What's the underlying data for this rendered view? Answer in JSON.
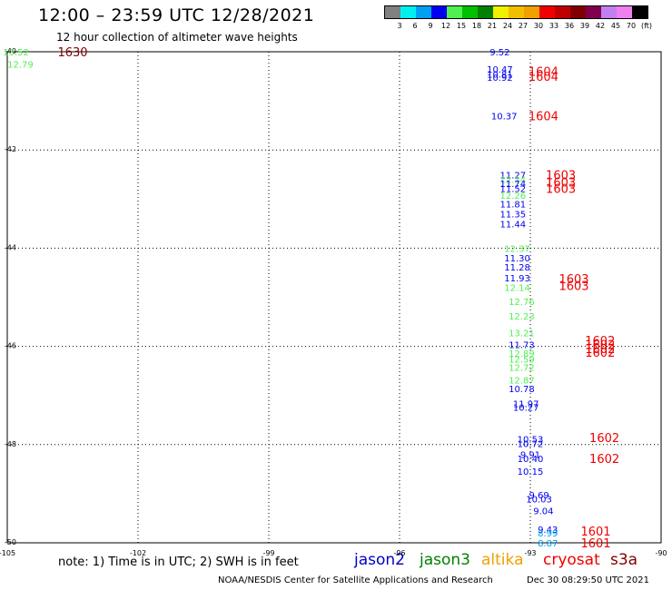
{
  "header": {
    "title": "12:00 – 23:59 UTC 12/28/2021",
    "subtitle": "12 hour collection of altimeter wave heights"
  },
  "legend": {
    "colors": [
      "#808080",
      "#00f0f0",
      "#00a0f0",
      "#0000f0",
      "#50f050",
      "#00c000",
      "#008000",
      "#f0f000",
      "#f0c000",
      "#f0a000",
      "#f00000",
      "#c00000",
      "#800000",
      "#800050",
      "#c080f0",
      "#f080f0",
      "#000000"
    ],
    "labels": [
      "3",
      "6",
      "9",
      "12",
      "15",
      "18",
      "21",
      "24",
      "27",
      "30",
      "33",
      "36",
      "39",
      "42",
      "45",
      "70",
      "(ft)"
    ]
  },
  "chart_data": {
    "type": "scatter",
    "xlim": [
      -105,
      -90
    ],
    "ylim": [
      -50,
      -40
    ],
    "x_ticks": [
      "-105",
      "-102",
      "-99",
      "-96",
      "-93",
      "-90"
    ],
    "y_ticks": [
      "-40",
      "-42",
      "-44",
      "-46",
      "-48",
      "-50"
    ],
    "grid": true,
    "points": [
      {
        "lon": -104.8,
        "lat": -40.0,
        "swh": "13.52",
        "color": "#50f050"
      },
      {
        "lon": -104.7,
        "lat": -40.25,
        "swh": "12.79",
        "color": "#50f050"
      },
      {
        "lon": -93.7,
        "lat": -40.0,
        "swh": "9.52",
        "color": "#0000f0"
      },
      {
        "lon": -93.7,
        "lat": -40.35,
        "swh": "10.47",
        "color": "#0000f0"
      },
      {
        "lon": -93.7,
        "lat": -40.45,
        "swh": "10.81",
        "color": "#0000f0"
      },
      {
        "lon": -93.7,
        "lat": -40.52,
        "swh": "10.92",
        "color": "#0000f0"
      },
      {
        "lon": -93.6,
        "lat": -41.3,
        "swh": "10.37",
        "color": "#0000f0"
      },
      {
        "lon": -93.4,
        "lat": -42.5,
        "swh": "11.27",
        "color": "#0000f0"
      },
      {
        "lon": -93.4,
        "lat": -42.6,
        "swh": "12.24",
        "color": "#50f050"
      },
      {
        "lon": -93.4,
        "lat": -42.68,
        "swh": "11.74",
        "color": "#0000f0"
      },
      {
        "lon": -93.4,
        "lat": -42.78,
        "swh": "11.52",
        "color": "#0000f0"
      },
      {
        "lon": -93.4,
        "lat": -42.92,
        "swh": "12.26",
        "color": "#50f050"
      },
      {
        "lon": -93.4,
        "lat": -43.1,
        "swh": "11.81",
        "color": "#0000f0"
      },
      {
        "lon": -93.4,
        "lat": -43.3,
        "swh": "11.35",
        "color": "#0000f0"
      },
      {
        "lon": -93.4,
        "lat": -43.5,
        "swh": "11.44",
        "color": "#0000f0"
      },
      {
        "lon": -93.3,
        "lat": -44.0,
        "swh": "12.37",
        "color": "#50f050"
      },
      {
        "lon": -93.3,
        "lat": -44.2,
        "swh": "11.30",
        "color": "#0000f0"
      },
      {
        "lon": -93.3,
        "lat": -44.38,
        "swh": "11.28",
        "color": "#0000f0"
      },
      {
        "lon": -93.3,
        "lat": -44.6,
        "swh": "11.93",
        "color": "#0000f0"
      },
      {
        "lon": -93.3,
        "lat": -44.8,
        "swh": "12.14",
        "color": "#50f050"
      },
      {
        "lon": -93.2,
        "lat": -45.08,
        "swh": "12.76",
        "color": "#50f050"
      },
      {
        "lon": -93.2,
        "lat": -45.38,
        "swh": "12.23",
        "color": "#50f050"
      },
      {
        "lon": -93.2,
        "lat": -45.72,
        "swh": "13.21",
        "color": "#50f050"
      },
      {
        "lon": -93.2,
        "lat": -45.96,
        "swh": "11.73",
        "color": "#0000f0"
      },
      {
        "lon": -93.2,
        "lat": -46.14,
        "swh": "12.89",
        "color": "#50f050"
      },
      {
        "lon": -93.2,
        "lat": -46.26,
        "swh": "12.59",
        "color": "#50f050"
      },
      {
        "lon": -93.2,
        "lat": -46.42,
        "swh": "12.72",
        "color": "#50f050"
      },
      {
        "lon": -93.2,
        "lat": -46.68,
        "swh": "12.87",
        "color": "#50f050"
      },
      {
        "lon": -93.2,
        "lat": -46.86,
        "swh": "10.78",
        "color": "#0000f0"
      },
      {
        "lon": -93.1,
        "lat": -47.16,
        "swh": "11.97",
        "color": "#0000f0"
      },
      {
        "lon": -93.1,
        "lat": -47.24,
        "swh": "10.27",
        "color": "#0000f0"
      },
      {
        "lon": -93.0,
        "lat": -47.88,
        "swh": "10.53",
        "color": "#0000f0"
      },
      {
        "lon": -93.0,
        "lat": -47.98,
        "swh": "10.72",
        "color": "#0000f0"
      },
      {
        "lon": -93.0,
        "lat": -48.2,
        "swh": "9.91",
        "color": "#0000f0"
      },
      {
        "lon": -93.0,
        "lat": -48.28,
        "swh": "10.40",
        "color": "#0000f0"
      },
      {
        "lon": -93.0,
        "lat": -48.54,
        "swh": "10.15",
        "color": "#0000f0"
      },
      {
        "lon": -92.8,
        "lat": -49.02,
        "swh": "9.69",
        "color": "#0000f0"
      },
      {
        "lon": -92.8,
        "lat": -49.1,
        "swh": "10.03",
        "color": "#0000f0"
      },
      {
        "lon": -92.7,
        "lat": -49.34,
        "swh": "9.04",
        "color": "#0000f0"
      },
      {
        "lon": -92.6,
        "lat": -49.72,
        "swh": "9.43",
        "color": "#0000f0"
      },
      {
        "lon": -92.6,
        "lat": -49.8,
        "swh": "8.99",
        "color": "#00a0f0"
      },
      {
        "lon": -92.6,
        "lat": -50.0,
        "swh": "8.87",
        "color": "#00a0f0"
      }
    ],
    "time_labels": [
      {
        "lon": -103.5,
        "lat": -40.0,
        "text": "1630",
        "color": "#800000"
      },
      {
        "lon": -92.7,
        "lat": -40.4,
        "text": "1604",
        "color": "#f00000"
      },
      {
        "lon": -92.7,
        "lat": -40.5,
        "text": "1604",
        "color": "#f00000"
      },
      {
        "lon": -92.7,
        "lat": -41.3,
        "text": "1604",
        "color": "#f00000"
      },
      {
        "lon": -92.3,
        "lat": -42.5,
        "text": "1603",
        "color": "#f00000"
      },
      {
        "lon": -92.3,
        "lat": -42.65,
        "text": "1603",
        "color": "#f00000"
      },
      {
        "lon": -92.3,
        "lat": -42.78,
        "text": "1603",
        "color": "#f00000"
      },
      {
        "lon": -92.0,
        "lat": -44.62,
        "text": "1603",
        "color": "#f00000"
      },
      {
        "lon": -92.0,
        "lat": -44.76,
        "text": "1603",
        "color": "#f00000"
      },
      {
        "lon": -91.4,
        "lat": -45.88,
        "text": "1602",
        "color": "#f00000"
      },
      {
        "lon": -91.4,
        "lat": -45.96,
        "text": "1602",
        "color": "#f00000"
      },
      {
        "lon": -91.4,
        "lat": -46.04,
        "text": "1602",
        "color": "#f00000"
      },
      {
        "lon": -91.4,
        "lat": -46.12,
        "text": "1602",
        "color": "#f00000"
      },
      {
        "lon": -91.3,
        "lat": -47.86,
        "text": "1602",
        "color": "#f00000"
      },
      {
        "lon": -91.3,
        "lat": -48.28,
        "text": "1602",
        "color": "#f00000"
      },
      {
        "lon": -91.5,
        "lat": -49.76,
        "text": "1601",
        "color": "#f00000"
      },
      {
        "lon": -91.5,
        "lat": -50.0,
        "text": "1601",
        "color": "#f00000"
      }
    ]
  },
  "note": "note:  1) Time is in UTC;  2) SWH is in feet",
  "satellites": [
    {
      "name": "jason2",
      "color": "#0000c8"
    },
    {
      "name": "jason3",
      "color": "#008000"
    },
    {
      "name": "altika",
      "color": "#f0a000"
    },
    {
      "name": "cryosat",
      "color": "#f00000"
    },
    {
      "name": "s3a",
      "color": "#800000"
    }
  ],
  "footer": {
    "credit": "NOAA/NESDIS Center for Satellite Applications and Research",
    "timestamp": "Dec 30 08:29:50 UTC 2021"
  }
}
